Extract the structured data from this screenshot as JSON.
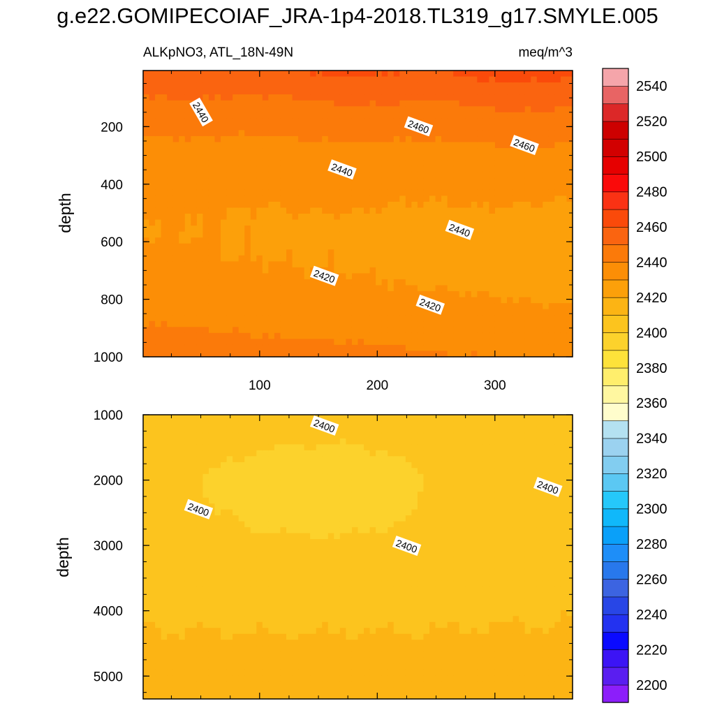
{
  "chart_data": {
    "type": "heatmap",
    "title": "g.e22.GOMIPECOIAF_JRA-1p4-2018.TL319_g17.SMYLE.005",
    "subtitle_left": "ALKpNO3, ATL_18N-49N",
    "subtitle_right": "meq/m^3",
    "xlabel": "",
    "ylabel": "depth",
    "x_ticks": [
      "100",
      "200",
      "300"
    ],
    "x_tick_values": [
      100,
      200,
      300
    ],
    "xlim": [
      1,
      366
    ],
    "panels": [
      {
        "name": "upper",
        "ylim": [
          1000,
          5
        ],
        "y_ticks": [
          "200",
          "400",
          "600",
          "800",
          "1000"
        ],
        "y_tick_values": [
          200,
          400,
          600,
          800,
          1000
        ],
        "contour_labels": [
          {
            "text": "2440",
            "x": 50,
            "y": 150
          },
          {
            "text": "2460",
            "x": 235,
            "y": 200
          },
          {
            "text": "2460",
            "x": 325,
            "y": 265
          },
          {
            "text": "2440",
            "x": 170,
            "y": 350
          },
          {
            "text": "2440",
            "x": 270,
            "y": 560
          },
          {
            "text": "2420",
            "x": 155,
            "y": 720
          },
          {
            "text": "2420",
            "x": 245,
            "y": 820
          }
        ]
      },
      {
        "name": "lower",
        "ylim": [
          5350,
          1000
        ],
        "y_ticks": [
          "1000",
          "2000",
          "3000",
          "4000",
          "5000"
        ],
        "y_tick_values": [
          1000,
          2000,
          3000,
          4000,
          5000
        ],
        "contour_labels": [
          {
            "text": "2400",
            "x": 155,
            "y": 1170
          },
          {
            "text": "2400",
            "x": 48,
            "y": 2450
          },
          {
            "text": "2400",
            "x": 225,
            "y": 3010
          },
          {
            "text": "2400",
            "x": 345,
            "y": 2110
          }
        ]
      }
    ],
    "colorbar": {
      "tick_labels": [
        "2200",
        "2220",
        "2240",
        "2260",
        "2280",
        "2300",
        "2320",
        "2340",
        "2360",
        "2380",
        "2400",
        "2420",
        "2440",
        "2460",
        "2480",
        "2500",
        "2520",
        "2540"
      ],
      "colors": [
        "#8c1efa",
        "#5a1ef0",
        "#3c14f5",
        "#0a0aff",
        "#2332f0",
        "#2846e6",
        "#3c64e1",
        "#2878ec",
        "#1e8ef8",
        "#0aa0f9",
        "#10b8fa",
        "#25c8fa",
        "#5bc8f3",
        "#82cdf0",
        "#9bd2f0",
        "#b4e1f1",
        "#fffdcc",
        "#fff7a0",
        "#ffee6c",
        "#fde23a",
        "#fcd22c",
        "#fcc41e",
        "#fcb414",
        "#fca00a",
        "#fc8e06",
        "#fb7a0a",
        "#fa6410",
        "#fa4a0a",
        "#fa3214",
        "#fa0a0a",
        "#e60000",
        "#d20000",
        "#cd0000",
        "#dc2828",
        "#e86464",
        "#f5a5aa"
      ]
    },
    "field_levels": [
      2390,
      2400,
      2410,
      2420,
      2430,
      2440,
      2450,
      2460
    ]
  }
}
